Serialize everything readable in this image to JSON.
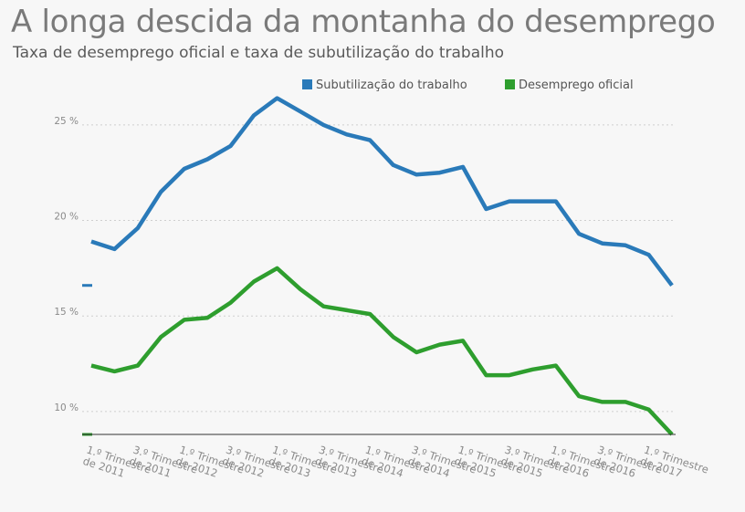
{
  "header": {
    "title": "A longa descida da montanha do desemprego",
    "subtitle": "Taxa de desemprego oficial e taxa de subutilização do trabalho"
  },
  "chart_data": {
    "type": "line",
    "x": [
      "1.º Trimestre de 2011",
      "2.º Trimestre de 2011",
      "3.º Trimestre de 2011",
      "4.º Trimestre de 2011",
      "1.º Trimestre de 2012",
      "2.º Trimestre de 2012",
      "3.º Trimestre de 2012",
      "4.º Trimestre de 2012",
      "1.º Trimestre de 2013",
      "2.º Trimestre de 2013",
      "3.º Trimestre de 2013",
      "4.º Trimestre de 2013",
      "1.º Trimestre de 2014",
      "2.º Trimestre de 2014",
      "3.º Trimestre de 2014",
      "4.º Trimestre de 2014",
      "1.º Trimestre de 2015",
      "2.º Trimestre de 2015",
      "3.º Trimestre de 2015",
      "4.º Trimestre de 2015",
      "1.º Trimestre de 2016",
      "2.º Trimestre de 2016",
      "3.º Trimestre de 2016",
      "4.º Trimestre de 2016",
      "1.º Trimestre de 2017",
      "2.º Trimestre de 2017"
    ],
    "x_tick_labels": [
      "1.º Trimestre de 2011",
      "3.º Trimestre de 2011",
      "1.º Trimestre de 2012",
      "3.º Trimestre de 2012",
      "1.º Trimestre de 2013",
      "3.º Trimestre de 2013",
      "1.º Trimestre de 2014",
      "3.º Trimestre de 2014",
      "1.º Trimestre de 2015",
      "3.º Trimestre de 2015",
      "1.º Trimestre de 2016",
      "3.º Trimestre de 2016",
      "1.º Trimestre de 2017"
    ],
    "series": [
      {
        "name": "Subutilização do trabalho",
        "color": "#2a7ab9",
        "values": [
          18.9,
          18.5,
          19.6,
          21.5,
          22.7,
          23.2,
          23.9,
          25.5,
          26.4,
          25.7,
          25.0,
          24.5,
          24.2,
          22.9,
          22.4,
          22.5,
          22.8,
          20.6,
          21.0,
          21.0,
          21.0,
          19.3,
          18.8,
          18.7,
          18.2,
          16.6
        ]
      },
      {
        "name": "Desemprego oficial",
        "color": "#2e9e2e",
        "values": [
          12.4,
          12.1,
          12.4,
          13.9,
          14.8,
          14.9,
          15.7,
          16.8,
          17.5,
          16.4,
          15.5,
          15.3,
          15.1,
          13.9,
          13.1,
          13.5,
          13.7,
          11.9,
          11.9,
          12.2,
          12.4,
          10.8,
          10.5,
          10.5,
          10.1,
          8.8
        ]
      }
    ],
    "y_ticks": [
      10,
      15,
      20,
      25
    ],
    "y_tick_suffix": " %",
    "ylim": [
      8.8,
      27
    ],
    "legend": "top-right",
    "grid": true
  }
}
